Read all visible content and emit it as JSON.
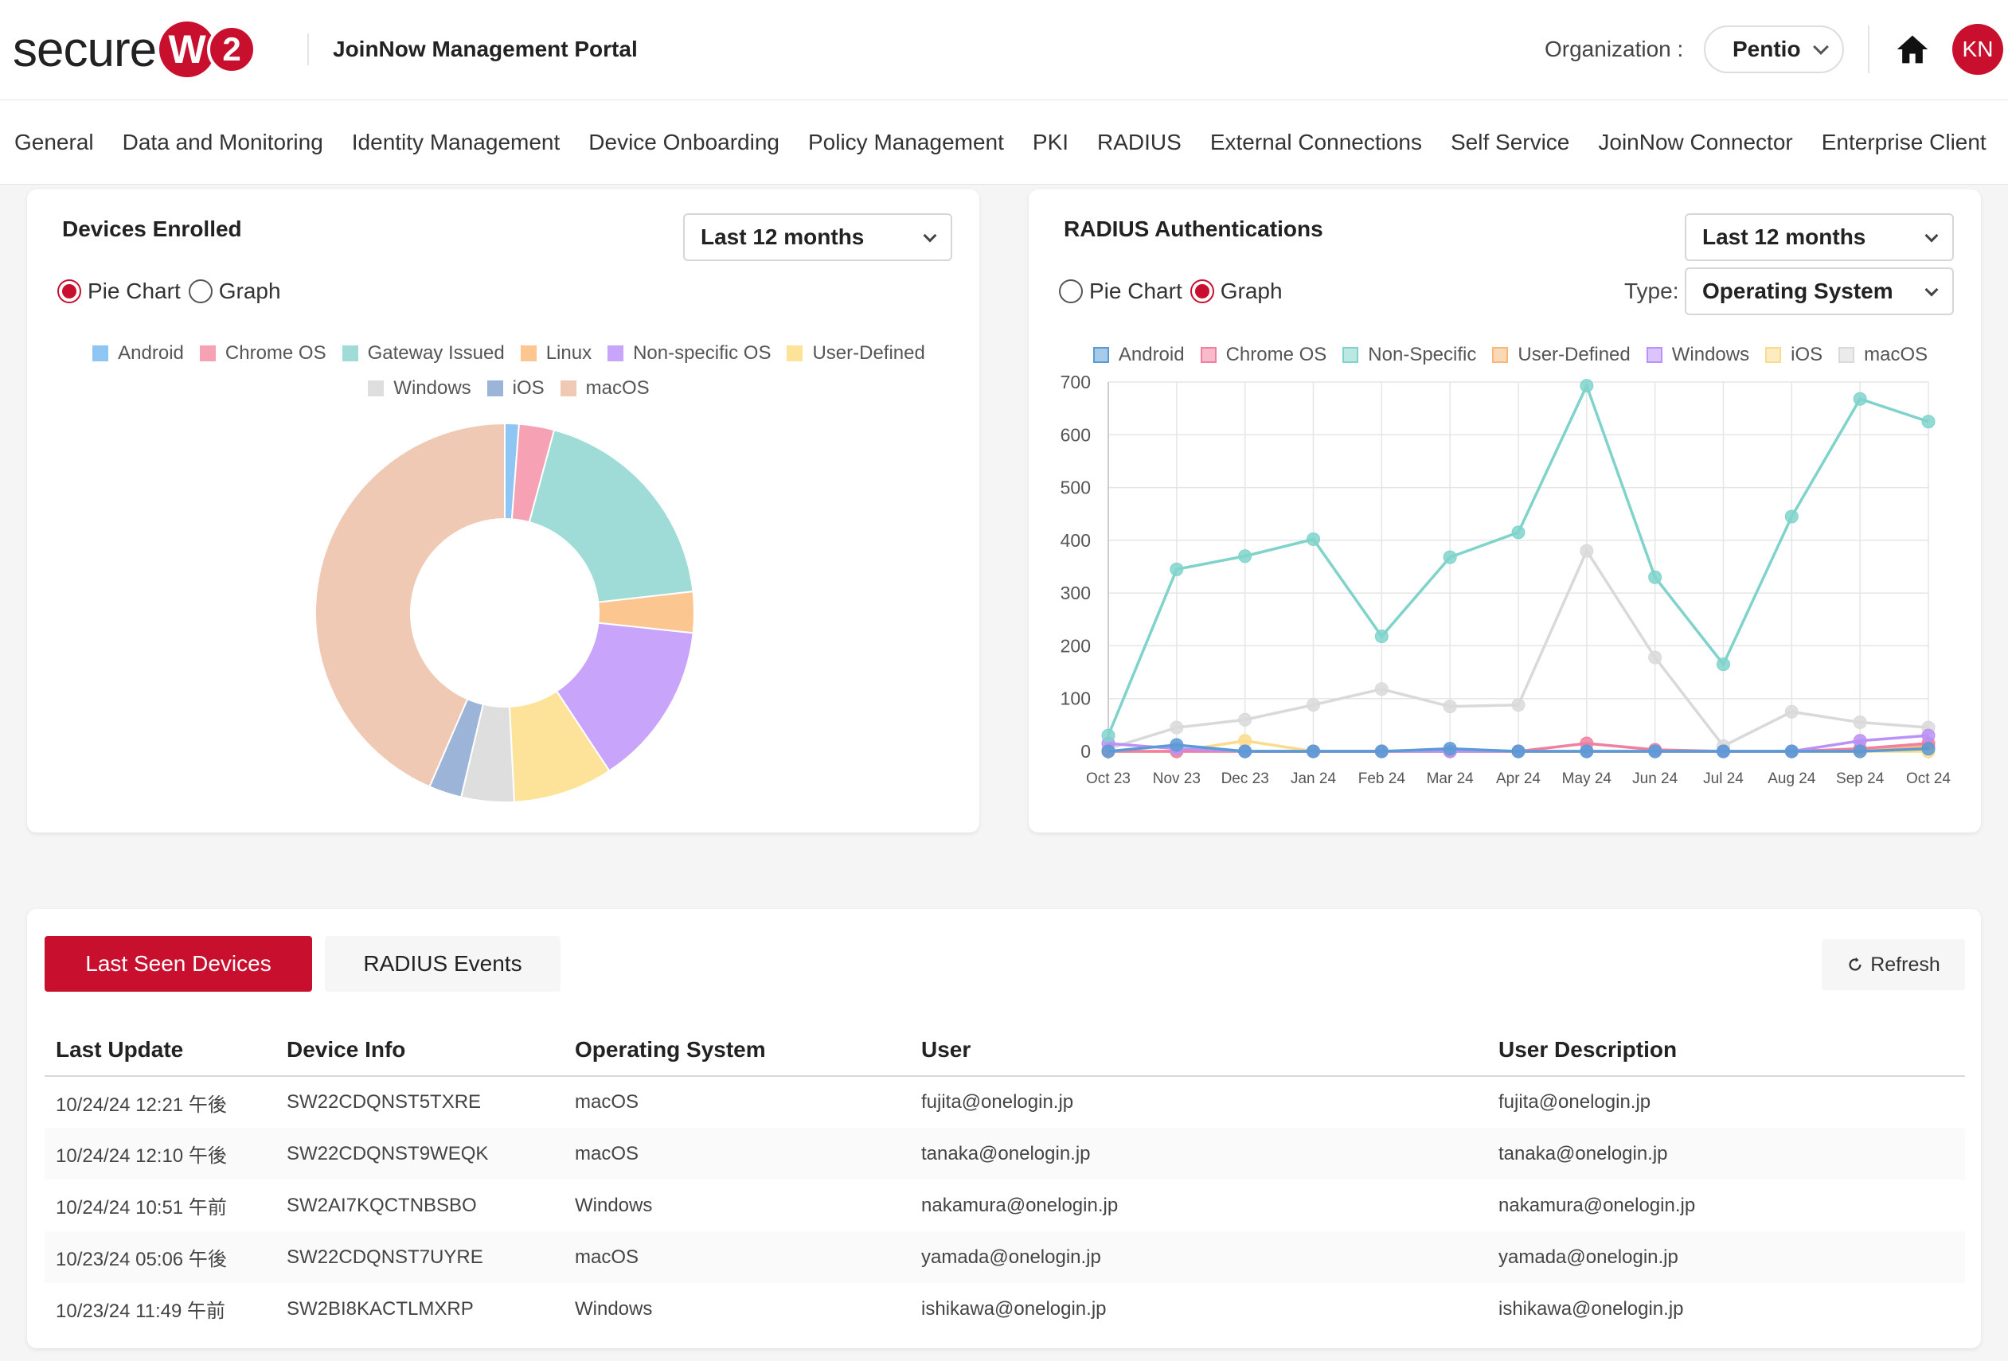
{
  "header": {
    "logo_text": "secure",
    "logo_w": "W",
    "logo_2": "2",
    "portal_title": "JoinNow Management Portal",
    "org_label": "Organization :",
    "org_value": "Pentio",
    "avatar_initials": "KN",
    "home_icon": "home-icon"
  },
  "nav": [
    "General",
    "Data and Monitoring",
    "Identity Management",
    "Device Onboarding",
    "Policy Management",
    "PKI",
    "RADIUS",
    "External Connections",
    "Self Service",
    "JoinNow Connector",
    "Enterprise Client"
  ],
  "devices_card": {
    "title": "Devices Enrolled",
    "range": "Last 12 months",
    "radio_pie": "Pie Chart",
    "radio_graph": "Graph",
    "selected_view": "Pie Chart"
  },
  "radius_card": {
    "title": "RADIUS Authentications",
    "range": "Last 12 months",
    "radio_pie": "Pie Chart",
    "radio_graph": "Graph",
    "selected_view": "Graph",
    "type_label": "Type:",
    "type_value": "Operating System"
  },
  "chart_data": [
    {
      "type": "pie",
      "title": "",
      "donut": true,
      "legend": "top",
      "labels": [
        "Android",
        "Chrome OS",
        "Gateway Issued",
        "Linux",
        "Non-specific OS",
        "User-Defined",
        "Windows",
        "iOS",
        "macOS"
      ],
      "colors": [
        "#8ec5f2",
        "#f7a1b5",
        "#9fdcd7",
        "#fcc690",
        "#c8a5fb",
        "#fde29a",
        "#dedede",
        "#9cb4d8",
        "#f0c9b4"
      ],
      "values": [
        1.2,
        3.0,
        19.0,
        3.5,
        14.0,
        8.5,
        4.5,
        2.8,
        43.5
      ]
    },
    {
      "type": "line",
      "title": "",
      "legend": "top",
      "grid": true,
      "categories": [
        "Oct 23",
        "Nov 23",
        "Dec 23",
        "Jan 24",
        "Feb 24",
        "Mar 24",
        "Apr 24",
        "May 24",
        "Jun 24",
        "Jul 24",
        "Aug 24",
        "Sep 24",
        "Oct 24"
      ],
      "ylim": [
        0,
        700
      ],
      "yticks": [
        0,
        100,
        200,
        300,
        400,
        500,
        600,
        700
      ],
      "series": [
        {
          "name": "Android",
          "color": "#5b9bd5",
          "values": [
            0,
            12,
            0,
            0,
            0,
            5,
            0,
            0,
            0,
            0,
            0,
            0,
            5
          ]
        },
        {
          "name": "Chrome OS",
          "color": "#f07fa0",
          "values": [
            0,
            0,
            0,
            0,
            0,
            0,
            0,
            15,
            3,
            0,
            0,
            5,
            15
          ]
        },
        {
          "name": "Non-Specific",
          "color": "#7fd3cb",
          "values": [
            30,
            345,
            370,
            402,
            218,
            368,
            415,
            693,
            330,
            165,
            445,
            668,
            625
          ]
        },
        {
          "name": "User-Defined",
          "color": "#f9b877",
          "values": [
            0,
            0,
            0,
            0,
            0,
            0,
            0,
            0,
            0,
            0,
            0,
            0,
            10
          ]
        },
        {
          "name": "Windows",
          "color": "#b991f7",
          "values": [
            15,
            5,
            0,
            0,
            0,
            0,
            0,
            0,
            0,
            0,
            0,
            20,
            30
          ]
        },
        {
          "name": "iOS",
          "color": "#fbdc8c",
          "values": [
            0,
            0,
            20,
            0,
            0,
            0,
            0,
            0,
            0,
            0,
            0,
            0,
            0
          ]
        },
        {
          "name": "macOS",
          "color": "#d9d9d9",
          "values": [
            5,
            45,
            60,
            88,
            118,
            85,
            88,
            380,
            178,
            10,
            75,
            55,
            45
          ]
        }
      ]
    }
  ],
  "table": {
    "tabs": {
      "active": "Last Seen Devices",
      "other": "RADIUS Events"
    },
    "refresh": "Refresh",
    "columns": [
      "Last Update",
      "Device Info",
      "Operating System",
      "User",
      "User Description"
    ],
    "rows": [
      [
        "10/24/24 12:21 午後",
        "SW22CDQNST5TXRE",
        "macOS",
        "fujita@onelogin.jp",
        "fujita@onelogin.jp"
      ],
      [
        "10/24/24 12:10 午後",
        "SW22CDQNST9WEQK",
        "macOS",
        "tanaka@onelogin.jp",
        "tanaka@onelogin.jp"
      ],
      [
        "10/24/24 10:51 午前",
        "SW2AI7KQCTNBSBO",
        "Windows",
        "nakamura@onelogin.jp",
        "nakamura@onelogin.jp"
      ],
      [
        "10/23/24 05:06 午後",
        "SW22CDQNST7UYRE",
        "macOS",
        "yamada@onelogin.jp",
        "yamada@onelogin.jp"
      ],
      [
        "10/23/24 11:49 午前",
        "SW2BI8KACTLMXRP",
        "Windows",
        "ishikawa@onelogin.jp",
        "ishikawa@onelogin.jp"
      ]
    ]
  }
}
